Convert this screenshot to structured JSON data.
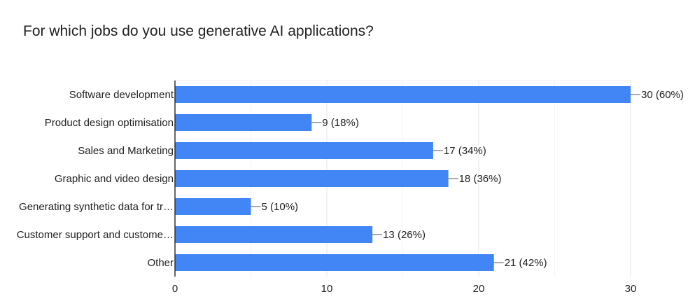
{
  "chart_data": {
    "type": "bar",
    "orientation": "horizontal",
    "title": "For which jobs do you use generative AI applications?",
    "categories": [
      "Software development",
      "Product design optimisation",
      "Sales and Marketing",
      "Graphic and video design",
      "Generating synthetic data for tr…",
      "Customer support and custome…",
      "Other"
    ],
    "values": [
      30,
      9,
      17,
      18,
      5,
      13,
      21
    ],
    "value_labels": [
      "30 (60%)",
      "9 (18%)",
      "17 (34%)",
      "18 (36%)",
      "5 (10%)",
      "13 (26%)",
      "21 (42%)"
    ],
    "xlim": [
      0,
      30
    ],
    "xticks": [
      0,
      10,
      20,
      30
    ],
    "grid": true,
    "bar_color": "#4285f4",
    "axis_color": "#333333",
    "grid_color": "#e6e6e6"
  }
}
